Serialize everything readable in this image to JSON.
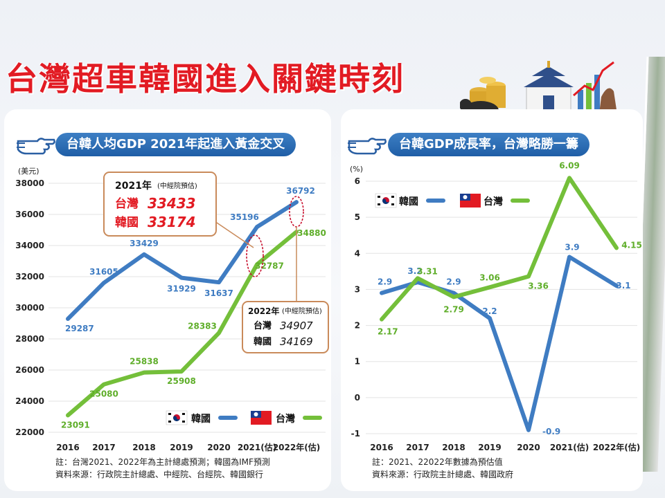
{
  "headline": "台灣超車韓國進入關鍵時刻",
  "left_panel": {
    "title": "台韓人均GDP 2021年起進入黃金交叉",
    "note": "註：台灣2021、2022年為主計總處預測；韓國為IMF預測",
    "source": "資料來源：行政院主計總處、中經院、台經院、韓國銀行",
    "callout_2021": {
      "head": "2021年",
      "sub": "(中經院預估)",
      "tw_label": "台灣",
      "tw_value": "33433",
      "kr_label": "韓國",
      "kr_value": "33174"
    },
    "callout_2022": {
      "head": "2022年",
      "sub": "(中經院預估)",
      "tw_label": "台灣",
      "tw_value": "34907",
      "kr_label": "韓國",
      "kr_value": "34169"
    }
  },
  "right_panel": {
    "title": "台韓GDP成長率，台灣略勝一籌",
    "note": "註：2021、22022年數據為預估值",
    "source": "資料來源：行政院主計總處、韓國政府"
  },
  "colors": {
    "korea": "#3f7cc2",
    "taiwan": "#74bf3a",
    "accent": "#e21b23",
    "callout_border": "#c98a5a"
  },
  "chart_data": [
    {
      "type": "line",
      "title": "台韓人均GDP 2021年起進入黃金交叉",
      "ylabel": "(美元)",
      "categories": [
        "2016",
        "2017",
        "2018",
        "2019",
        "2020",
        "2021(估)",
        "2022年(估)"
      ],
      "ylim": [
        22000,
        38000
      ],
      "yticks": [
        "22000",
        "24000",
        "26000",
        "28000",
        "30000",
        "32000",
        "34000",
        "36000",
        "38000"
      ],
      "grid": true,
      "legend": "bottom-right",
      "series": [
        {
          "name": "韓國",
          "color": "#3f7cc2",
          "values": [
            29287,
            31605,
            33429,
            31929,
            31637,
            35196,
            36792
          ]
        },
        {
          "name": "台灣",
          "color": "#74bf3a",
          "values": [
            23091,
            25080,
            25838,
            25908,
            28383,
            32787,
            34880
          ]
        }
      ]
    },
    {
      "type": "line",
      "title": "台韓GDP成長率，台灣略勝一籌",
      "ylabel": "(%)",
      "categories": [
        "2016",
        "2017",
        "2018",
        "2019",
        "2020",
        "2021(估)",
        "2022年(估)"
      ],
      "ylim": [
        -1,
        6
      ],
      "yticks": [
        "-1",
        "0",
        "1",
        "2",
        "3",
        "4",
        "5",
        "6"
      ],
      "grid": true,
      "legend": "top-left",
      "series": [
        {
          "name": "韓國",
          "color": "#3f7cc2",
          "values": [
            2.9,
            3.2,
            2.9,
            2.2,
            -0.9,
            3.9,
            3.1
          ],
          "labels": [
            "2.9",
            "3.2",
            "2.9",
            "2.2",
            "-0.9",
            "3.9",
            "3.1"
          ]
        },
        {
          "name": "台灣",
          "color": "#74bf3a",
          "values": [
            2.17,
            3.31,
            2.79,
            3.06,
            3.36,
            6.09,
            4.15
          ],
          "labels": [
            "2.17",
            "3.31",
            "2.79",
            "3.06",
            "3.36",
            "6.09",
            "4.15"
          ]
        }
      ]
    }
  ]
}
